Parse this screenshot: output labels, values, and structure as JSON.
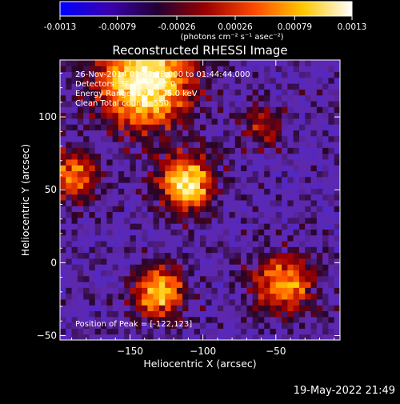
{
  "chart_data": {
    "type": "heatmap",
    "title": "Reconstructed RHESSI Image",
    "xlabel": "Heliocentric X (arcsec)",
    "ylabel": "Heliocentric Y (arcsec)",
    "xticks": [
      -150,
      -100,
      -50
    ],
    "yticks": [
      -50,
      0,
      50,
      100
    ],
    "xlim": [
      -198,
      -6
    ],
    "ylim": [
      -53,
      139
    ],
    "colorbar": {
      "range": [
        -0.0013,
        0.0013
      ],
      "ticks": [
        -0.0013,
        -0.00079,
        -0.00026,
        0.00026,
        0.00079,
        0.0013
      ],
      "tick_labels": [
        "-0.0013",
        "-0.00079",
        "-0.00026",
        "0.00026",
        "0.00079",
        "0.0013"
      ],
      "unit_label": "(photons cm⁻² s⁻¹ asec⁻²)",
      "colors": [
        "#0000ff",
        "#3a00b0",
        "#220033",
        "#9a0000",
        "#ff4a00",
        "#ffc800",
        "#ffffff"
      ]
    },
    "peak": {
      "x": -122,
      "y": 123
    },
    "sources": [
      {
        "x": -140,
        "y": 125,
        "w": 22,
        "amp": 1.0
      },
      {
        "x": -112,
        "y": 55,
        "w": 13,
        "amp": 0.9
      },
      {
        "x": -130,
        "y": -20,
        "w": 12,
        "amp": 0.75
      },
      {
        "x": -45,
        "y": -15,
        "w": 14,
        "amp": 0.65
      },
      {
        "x": -190,
        "y": 60,
        "w": 12,
        "amp": 0.6
      },
      {
        "x": -60,
        "y": 95,
        "w": 10,
        "amp": 0.4
      }
    ]
  },
  "info_lines": [
    "26-Nov-2014 01:43:28.000 to 01:44:44.000",
    "Detectors: 3F 4F 9F  Att 0",
    "Energy Range: 12.0 - 25.0 keV",
    "Clean     Total counts: 550."
  ],
  "peak_label": "Position of Peak = [-122,123]",
  "timestamp": "19-May-2022 21:49"
}
